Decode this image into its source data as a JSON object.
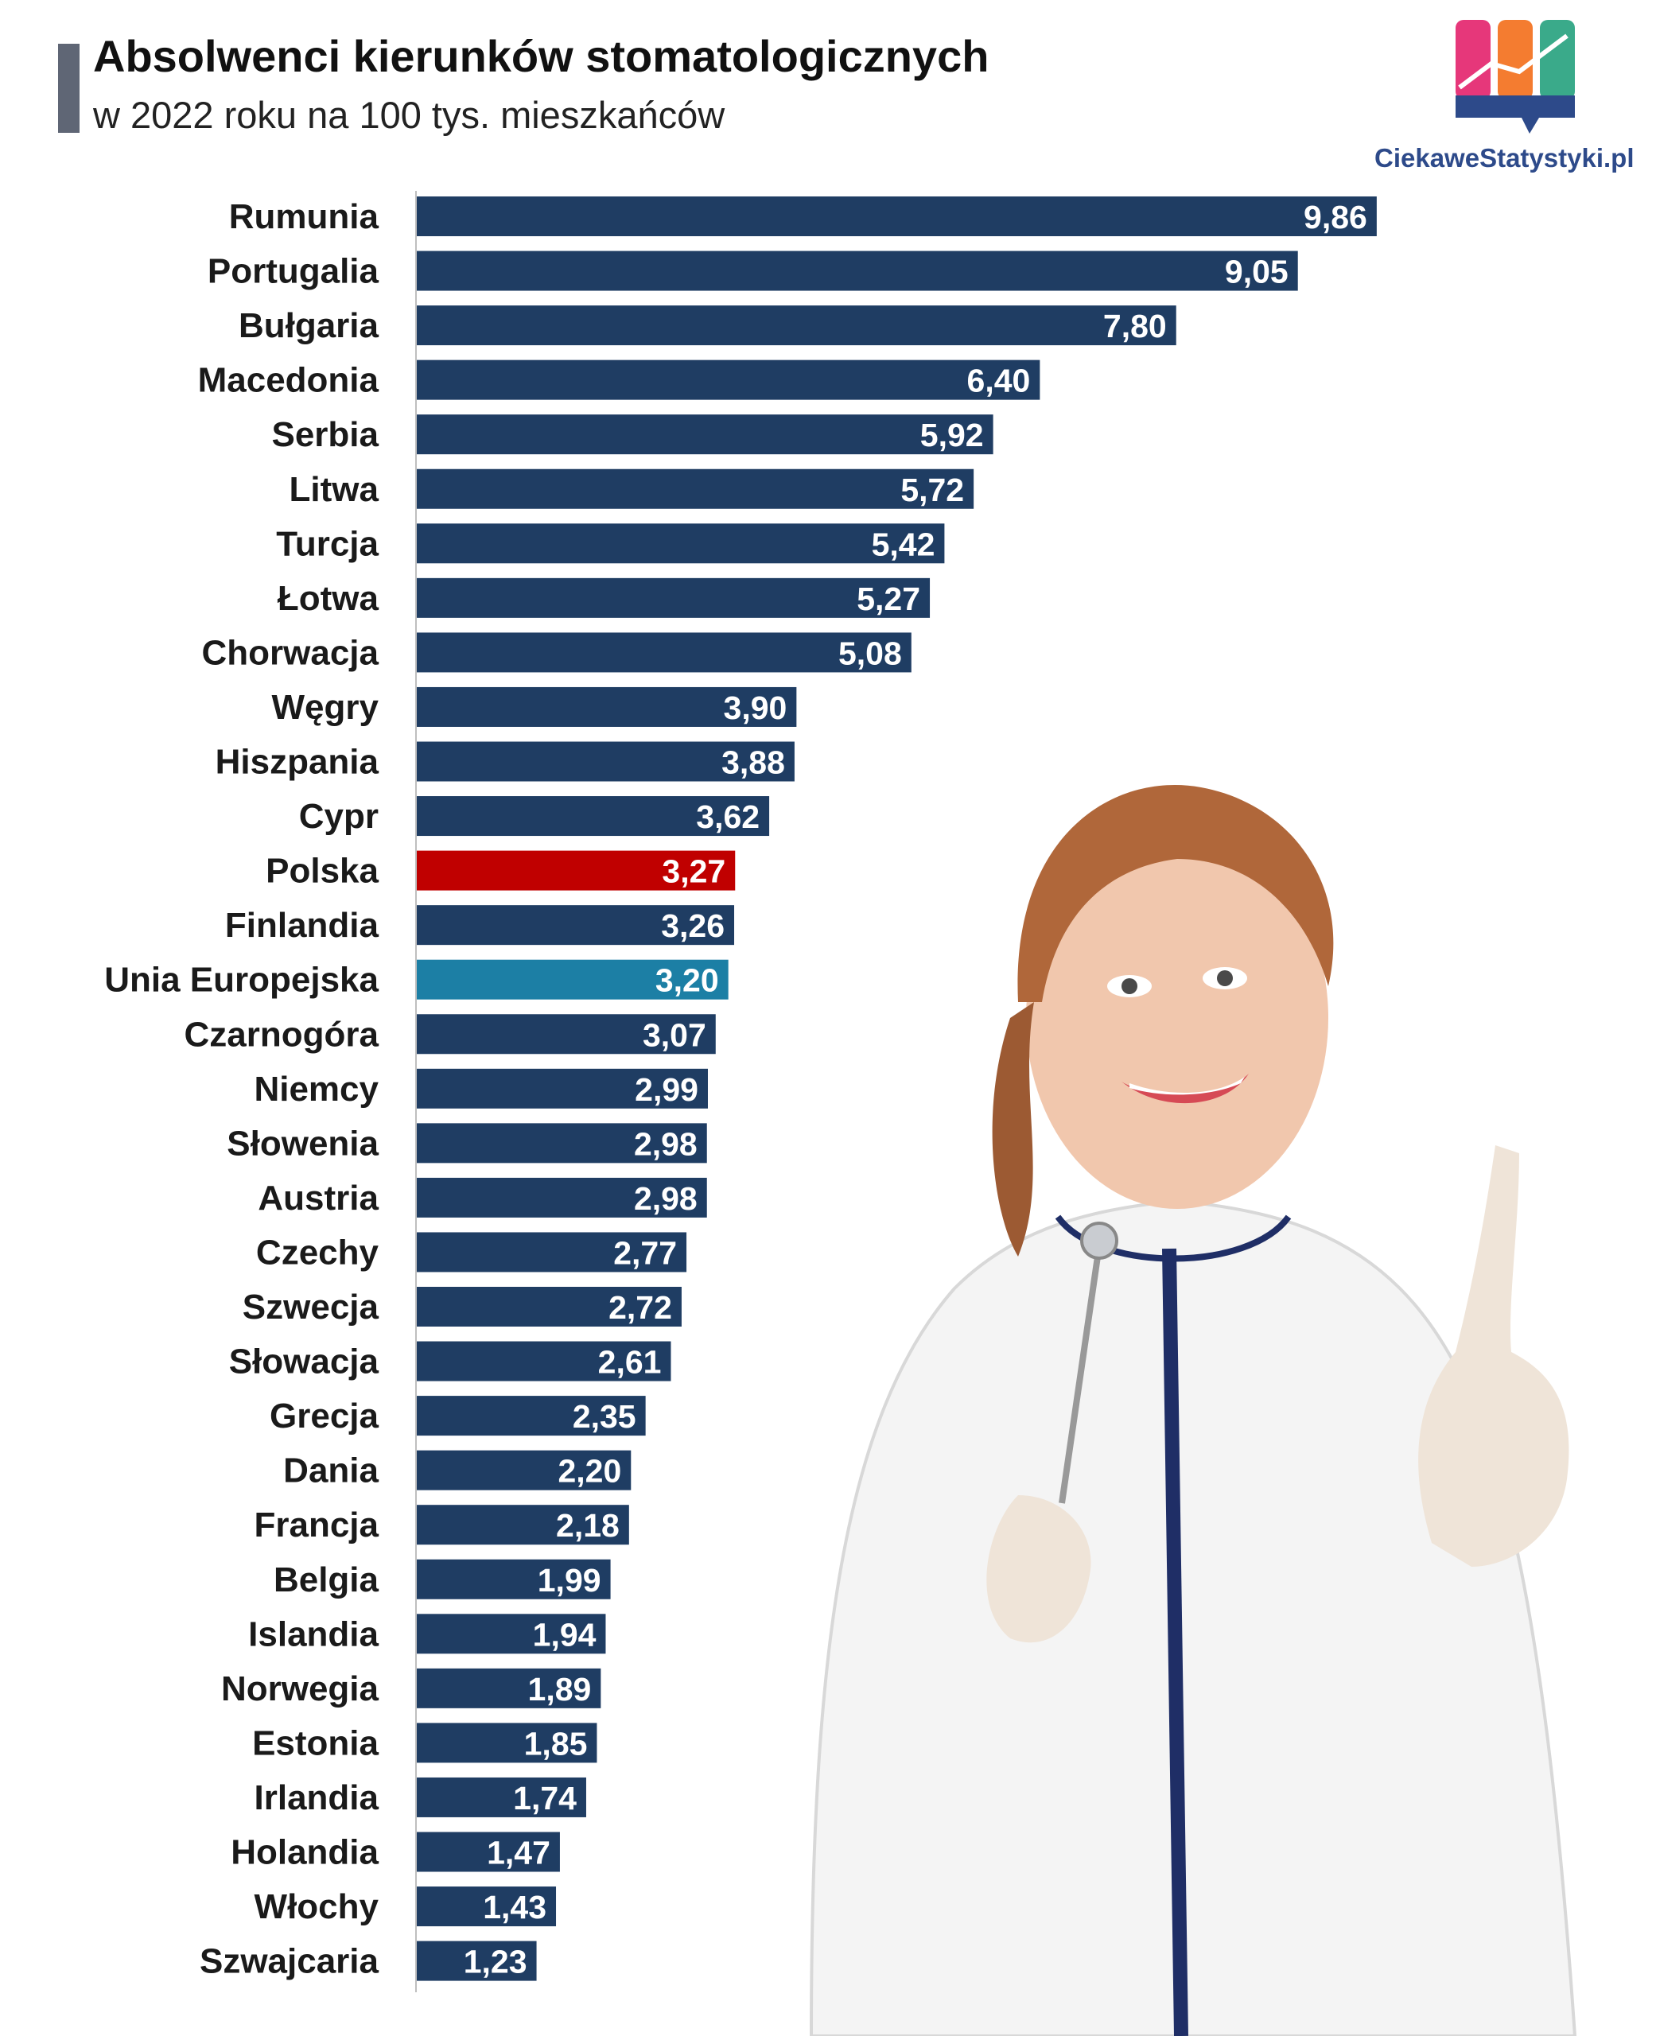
{
  "header": {
    "title": "Absolwenci kierunków stomatologicznych",
    "subtitle": "w 2022 roku na 100 tys. mieszkańców"
  },
  "brand": {
    "name": "CiekaweStatystyki.pl",
    "colors": [
      "#e6377a",
      "#f47c30",
      "#3aaa8a",
      "#2d4a8a"
    ]
  },
  "colors": {
    "default_bar": "#1f3d63",
    "highlight_poland": "#c00000",
    "highlight_eu": "#1c7fa5"
  },
  "chart_data": {
    "type": "bar",
    "orientation": "horizontal",
    "title": "Absolwenci kierunków stomatologicznych",
    "subtitle": "w 2022 roku na 100 tys. mieszkańców",
    "xlabel": "",
    "ylabel": "",
    "xlim": [
      0,
      10
    ],
    "grid": false,
    "legend": "none",
    "categories": [
      "Rumunia",
      "Portugalia",
      "Bułgaria",
      "Macedonia",
      "Serbia",
      "Litwa",
      "Turcja",
      "Łotwa",
      "Chorwacja",
      "Węgry",
      "Hiszpania",
      "Cypr",
      "Polska",
      "Finlandia",
      "Unia Europejska",
      "Czarnogóra",
      "Niemcy",
      "Słowenia",
      "Austria",
      "Czechy",
      "Szwecja",
      "Słowacja",
      "Grecja",
      "Dania",
      "Francja",
      "Belgia",
      "Islandia",
      "Norwegia",
      "Estonia",
      "Irlandia",
      "Holandia",
      "Włochy",
      "Szwajcaria"
    ],
    "values": [
      9.86,
      9.05,
      7.8,
      6.4,
      5.92,
      5.72,
      5.42,
      5.27,
      5.08,
      3.9,
      3.88,
      3.62,
      3.27,
      3.26,
      3.2,
      3.07,
      2.99,
      2.98,
      2.98,
      2.77,
      2.72,
      2.61,
      2.35,
      2.2,
      2.18,
      1.99,
      1.94,
      1.89,
      1.85,
      1.74,
      1.47,
      1.43,
      1.23
    ],
    "value_labels": [
      "9,86",
      "9,05",
      "7,80",
      "6,40",
      "5,92",
      "5,72",
      "5,42",
      "5,27",
      "5,08",
      "3,90",
      "3,88",
      "3,62",
      "3,27",
      "3,26",
      "3,20",
      "3,07",
      "2,99",
      "2,98",
      "2,98",
      "2,77",
      "2,72",
      "2,61",
      "2,35",
      "2,20",
      "2,18",
      "1,99",
      "1,94",
      "1,89",
      "1,85",
      "1,74",
      "1,47",
      "1,43",
      "1,23"
    ],
    "highlights": {
      "Polska": "#c00000",
      "Unia Europejska": "#1c7fa5"
    }
  }
}
